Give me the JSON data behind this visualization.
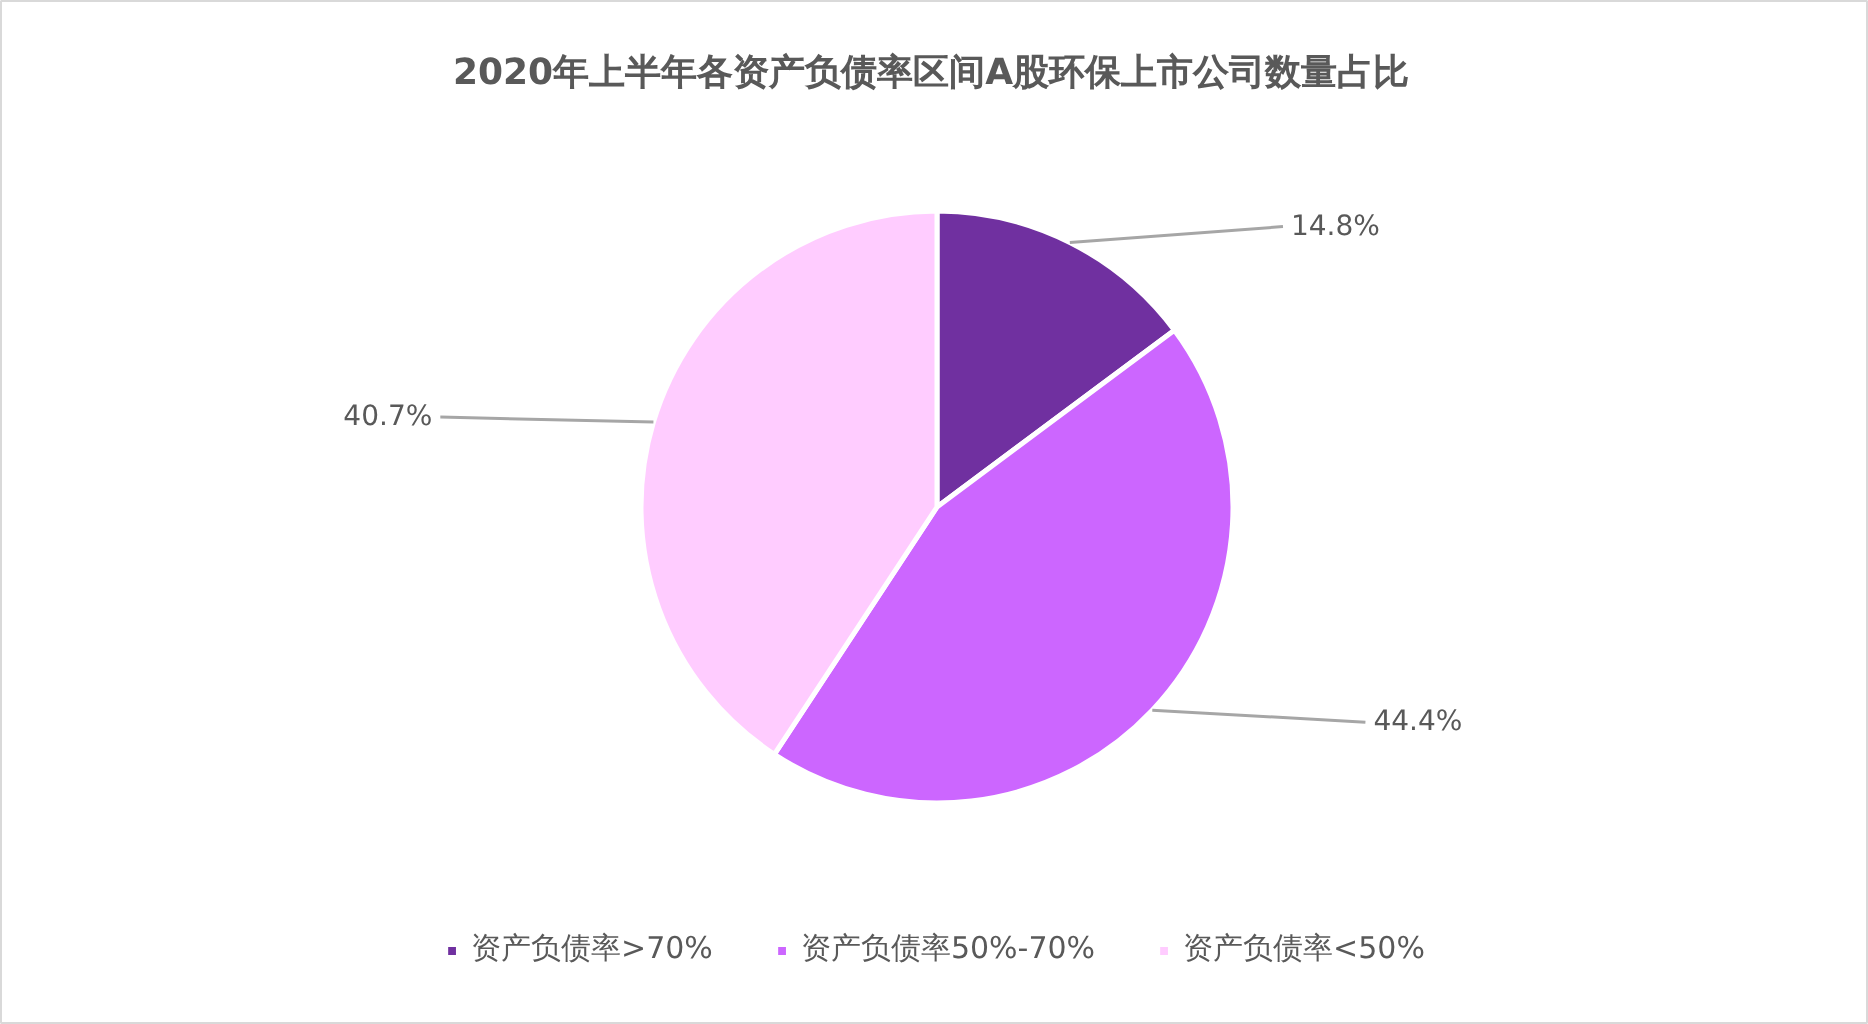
{
  "chart_data": {
    "type": "pie",
    "title": "2020年上半年各资产负债率区间A股环保上市公司数量占比",
    "categories": [
      "资产负债率>70%",
      "资产负债率50%-70%",
      "资产负债率<50%"
    ],
    "values": [
      14.8,
      44.4,
      40.7
    ],
    "colors": [
      "#7030a0",
      "#cc66ff",
      "#ffccff"
    ],
    "value_labels": [
      "14.8%",
      "44.4%",
      "40.7%"
    ],
    "legend": "bottom"
  }
}
